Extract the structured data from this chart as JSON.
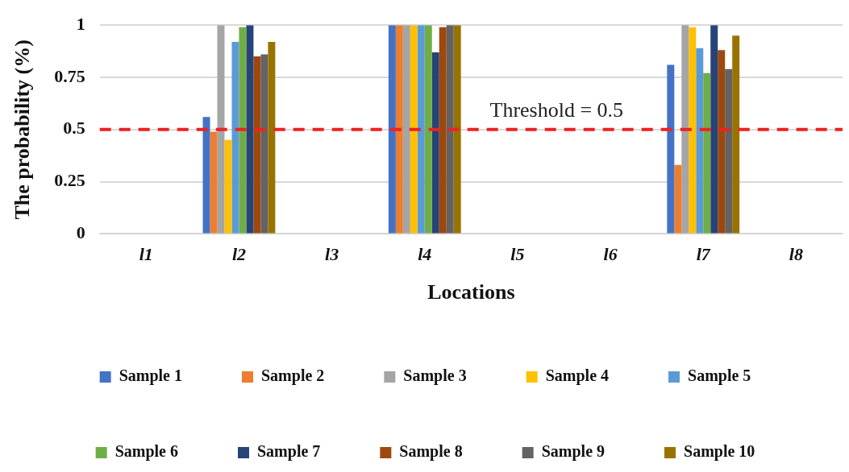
{
  "chart_data": {
    "type": "bar",
    "xlabel": "Locations",
    "ylabel": "The probability (%)",
    "categories": [
      "l1",
      "l2",
      "l3",
      "l4",
      "l5",
      "l6",
      "l7",
      "l8"
    ],
    "series": [
      {
        "name": "Sample 1",
        "color": "#4472c4",
        "values": [
          0,
          0.56,
          0,
          1,
          0,
          0,
          0.81,
          0
        ]
      },
      {
        "name": "Sample 2",
        "color": "#ed7d31",
        "values": [
          0,
          0.49,
          0,
          1,
          0,
          0,
          0.33,
          0
        ]
      },
      {
        "name": "Sample 3",
        "color": "#a5a5a5",
        "values": [
          0,
          1,
          0,
          1,
          0,
          0,
          1,
          0
        ]
      },
      {
        "name": "Sample 4",
        "color": "#ffc000",
        "values": [
          0,
          0.45,
          0,
          1,
          0,
          0,
          0.99,
          0
        ]
      },
      {
        "name": "Sample 5",
        "color": "#5b9bd5",
        "values": [
          0,
          0.92,
          0,
          1,
          0,
          0,
          0.89,
          0
        ]
      },
      {
        "name": "Sample 6",
        "color": "#70ad47",
        "values": [
          0,
          0.99,
          0,
          1,
          0,
          0,
          0.77,
          0
        ]
      },
      {
        "name": "Sample 7",
        "color": "#264478",
        "values": [
          0,
          1,
          0,
          0.87,
          0,
          0,
          1,
          0
        ]
      },
      {
        "name": "Sample 8",
        "color": "#9e480e",
        "values": [
          0,
          0.85,
          0,
          0.99,
          0,
          0,
          0.88,
          0
        ]
      },
      {
        "name": "Sample 9",
        "color": "#636363",
        "values": [
          0,
          0.86,
          0,
          1,
          0,
          0,
          0.79,
          0
        ]
      },
      {
        "name": "Sample 10",
        "color": "#997300",
        "values": [
          0,
          0.92,
          0,
          1,
          0,
          0,
          0.95,
          0
        ]
      }
    ],
    "ylim": [
      0,
      1
    ],
    "yticks": [
      0,
      0.25,
      0.5,
      0.75,
      1
    ],
    "ref_lines": [
      {
        "axis": "y",
        "value": 0.5,
        "label": "Threshold = 0.5",
        "color": "#ee2222",
        "line_style": "dashed"
      }
    ],
    "grid": "y",
    "legend": "bottom"
  }
}
